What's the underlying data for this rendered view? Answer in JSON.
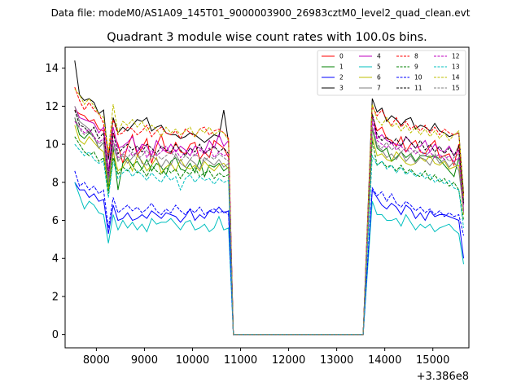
{
  "supertitle": "Data file: modeM0/AS1A09_145T01_9000003900_26983cztM0_level2_quad_clean.evt",
  "chart_data": {
    "type": "line",
    "title": "Quadrant 3 module wise count rates with 100.0s bins.",
    "xlabel": "",
    "ylabel": "",
    "x_offset_label": "+3.386e8",
    "xlim": [
      7350,
      15750
    ],
    "ylim": [
      -0.7,
      15.1
    ],
    "xticks": [
      8000,
      9000,
      10000,
      11000,
      12000,
      13000,
      14000,
      15000
    ],
    "yticks": [
      0,
      2,
      4,
      6,
      8,
      10,
      12,
      14
    ],
    "gaps": [
      [
        10600,
        13640
      ]
    ],
    "legend_position": "top-right",
    "legend_columns": 4,
    "series": [
      {
        "name": "0",
        "color": "#ff0000",
        "dashed": false,
        "seg1": [
          11.8,
          11.6,
          11.5,
          11.2,
          11.3,
          10.8,
          10.7,
          8.2,
          10.6,
          10.0,
          9.0,
          9.9,
          10.5,
          9.4,
          9.8,
          10.3,
          9.0,
          9.9,
          10.5,
          9.6,
          9.5,
          10.1,
          9.6,
          9.5,
          10.0,
          10.1,
          9.2,
          9.6,
          9.3,
          10.2,
          10.0,
          9.8,
          9.3
        ],
        "seg2": [
          11.5,
          10.7,
          10.9,
          10.3,
          10.2,
          9.9,
          10.4,
          9.6,
          10.0,
          10.2,
          9.6,
          9.5,
          9.9,
          10.2,
          9.3,
          9.4,
          9.5,
          8.9,
          10.0,
          7.3
        ]
      },
      {
        "name": "1",
        "color": "#008000",
        "dashed": false,
        "seg1": [
          11.4,
          10.5,
          10.3,
          10.6,
          10.4,
          9.8,
          10.1,
          7.7,
          9.8,
          7.6,
          9.0,
          9.3,
          8.9,
          9.1,
          8.7,
          9.2,
          8.6,
          9.0,
          8.8,
          8.4,
          9.1,
          9.3,
          8.7,
          8.6,
          9.0,
          8.5,
          9.2,
          8.3,
          8.9,
          8.8,
          9.0,
          8.6,
          8.8
        ],
        "seg2": [
          10.8,
          9.8,
          9.6,
          9.8,
          9.1,
          9.3,
          9.6,
          9.3,
          9.5,
          9.1,
          9.4,
          9.4,
          9.3,
          9.4,
          9.2,
          8.9,
          8.6,
          8.3,
          9.3,
          7.0
        ]
      },
      {
        "name": "2",
        "color": "#0000ff",
        "dashed": false,
        "seg1": [
          8.0,
          7.6,
          7.6,
          7.2,
          7.4,
          7.0,
          7.1,
          5.3,
          6.8,
          6.0,
          6.1,
          6.4,
          6.0,
          6.1,
          6.3,
          6.1,
          6.5,
          6.3,
          6.1,
          6.4,
          6.3,
          6.2,
          5.9,
          6.2,
          6.6,
          6.0,
          6.3,
          6.1,
          6.5,
          6.4,
          6.7,
          6.4,
          6.5
        ],
        "seg2": [
          7.6,
          7.2,
          6.8,
          6.6,
          6.9,
          6.7,
          6.3,
          6.8,
          6.6,
          6.1,
          6.4,
          6.0,
          6.5,
          6.2,
          6.3,
          6.3,
          6.2,
          6.1,
          6.0,
          4.0
        ]
      },
      {
        "name": "3",
        "color": "#000000",
        "dashed": false,
        "seg1": [
          14.4,
          12.6,
          12.3,
          12.4,
          12.2,
          11.6,
          11.8,
          9.2,
          11.4,
          10.6,
          10.9,
          10.7,
          11.0,
          11.3,
          11.2,
          11.4,
          10.7,
          10.9,
          11.0,
          10.6,
          10.5,
          10.5,
          10.3,
          10.4,
          10.6,
          10.5,
          10.3,
          10.1,
          10.3,
          10.5,
          10.4,
          11.8,
          10.1
        ],
        "seg2": [
          12.4,
          11.7,
          11.9,
          11.2,
          11.5,
          11.3,
          11.0,
          11.3,
          11.4,
          10.8,
          11.0,
          10.9,
          10.7,
          11.1,
          10.7,
          10.6,
          10.4,
          10.5,
          10.6,
          7.4
        ]
      },
      {
        "name": "4",
        "color": "#bf00bf",
        "dashed": false,
        "seg1": [
          12.0,
          11.4,
          11.3,
          11.2,
          11.1,
          10.6,
          10.9,
          8.6,
          10.9,
          9.8,
          9.9,
          10.1,
          10.4,
          9.6,
          10.0,
          9.9,
          9.4,
          10.2,
          9.8,
          9.6,
          10.0,
          9.6,
          9.9,
          9.7,
          9.4,
          9.9,
          9.8,
          9.6,
          10.2,
          9.8,
          10.5,
          9.9,
          10.2
        ],
        "seg2": [
          11.6,
          10.3,
          10.5,
          10.2,
          10.1,
          10.0,
          9.9,
          10.4,
          10.1,
          9.8,
          9.9,
          10.2,
          9.6,
          10.0,
          9.7,
          9.6,
          9.9,
          9.4,
          9.7,
          6.8
        ]
      },
      {
        "name": "5",
        "color": "#00bfbf",
        "dashed": false,
        "seg1": [
          8.0,
          7.3,
          6.6,
          7.0,
          6.8,
          6.4,
          6.3,
          4.8,
          6.3,
          5.5,
          6.0,
          5.6,
          5.9,
          5.5,
          5.8,
          5.4,
          6.1,
          5.8,
          5.9,
          5.9,
          6.1,
          5.8,
          5.5,
          5.9,
          6.0,
          5.5,
          5.6,
          5.8,
          5.4,
          5.6,
          6.2,
          5.5,
          5.6
        ],
        "seg2": [
          7.0,
          6.3,
          6.3,
          6.0,
          6.0,
          6.1,
          5.7,
          6.3,
          5.9,
          5.5,
          5.8,
          5.6,
          5.8,
          5.4,
          5.6,
          5.7,
          5.8,
          5.5,
          5.3,
          3.7
        ]
      },
      {
        "name": "6",
        "color": "#bfbf00",
        "dashed": false,
        "seg1": [
          11.0,
          10.2,
          10.0,
          10.4,
          10.1,
          9.8,
          9.6,
          7.5,
          9.6,
          8.6,
          8.8,
          9.2,
          8.6,
          9.4,
          9.1,
          8.6,
          8.9,
          9.3,
          8.5,
          8.8,
          9.0,
          8.6,
          9.2,
          8.8,
          8.7,
          8.9,
          8.6,
          9.1,
          8.8,
          8.6,
          8.9,
          9.0,
          8.7
        ],
        "seg2": [
          10.4,
          9.4,
          9.5,
          9.2,
          9.1,
          9.6,
          9.3,
          9.0,
          8.9,
          9.0,
          9.3,
          9.1,
          9.4,
          9.0,
          8.9,
          9.1,
          8.7,
          8.8,
          8.9,
          6.3
        ]
      },
      {
        "name": "7",
        "color": "#7f7f7f",
        "dashed": false,
        "seg1": [
          12.0,
          11.2,
          11.0,
          10.8,
          10.4,
          9.8,
          10.1,
          8.0,
          9.9,
          9.1,
          9.4,
          9.0,
          9.3,
          9.6,
          9.0,
          8.9,
          9.4,
          9.2,
          8.8,
          9.2,
          8.9,
          9.5,
          9.0,
          8.8,
          9.2,
          9.0,
          8.7,
          9.3,
          9.1,
          8.9,
          9.2,
          8.8,
          9.0
        ],
        "seg2": [
          10.9,
          9.9,
          9.7,
          9.3,
          9.5,
          9.2,
          9.6,
          9.1,
          9.4,
          9.0,
          9.3,
          9.2,
          8.9,
          9.4,
          9.0,
          9.2,
          8.8,
          9.1,
          8.6,
          6.6
        ]
      },
      {
        "name": "8",
        "color": "#ff0000",
        "dashed": true,
        "seg1": [
          13.0,
          12.3,
          11.8,
          12.2,
          11.8,
          11.6,
          11.1,
          9.4,
          11.3,
          10.5,
          10.6,
          10.9,
          10.8,
          10.5,
          10.7,
          11.0,
          10.4,
          10.7,
          10.9,
          10.6,
          10.5,
          10.7,
          10.3,
          10.8,
          10.6,
          10.4,
          10.8,
          10.9,
          10.5,
          10.7,
          10.8,
          10.6,
          10.3
        ],
        "seg2": [
          12.0,
          11.5,
          11.8,
          11.3,
          11.0,
          11.4,
          10.9,
          11.2,
          10.8,
          11.0,
          10.7,
          11.0,
          10.6,
          10.9,
          10.5,
          10.8,
          10.6,
          10.5,
          10.6,
          7.2
        ]
      },
      {
        "name": "9",
        "color": "#008000",
        "dashed": true,
        "seg1": [
          10.4,
          10.0,
          9.6,
          9.4,
          9.6,
          9.1,
          9.3,
          7.4,
          9.3,
          8.4,
          8.8,
          8.6,
          8.9,
          8.5,
          8.7,
          8.3,
          8.9,
          8.6,
          8.4,
          8.8,
          8.5,
          8.7,
          8.2,
          8.6,
          8.4,
          8.8,
          8.3,
          8.5,
          8.6,
          8.2,
          8.5,
          8.3,
          8.4
        ],
        "seg2": [
          10.2,
          8.9,
          9.1,
          8.8,
          8.9,
          8.6,
          8.9,
          8.5,
          8.7,
          8.4,
          8.3,
          8.6,
          8.1,
          8.4,
          8.0,
          8.2,
          7.8,
          8.0,
          7.6,
          6.0
        ]
      },
      {
        "name": "10",
        "color": "#0000ff",
        "dashed": true,
        "seg1": [
          8.6,
          7.8,
          8.0,
          7.6,
          7.8,
          7.4,
          7.6,
          5.6,
          7.2,
          6.4,
          6.6,
          6.8,
          6.5,
          6.7,
          6.4,
          6.6,
          6.9,
          6.5,
          6.3,
          6.6,
          6.4,
          6.8,
          6.5,
          6.3,
          6.6,
          6.4,
          6.7,
          6.3,
          6.5,
          6.6,
          6.4,
          6.5,
          6.3
        ],
        "seg2": [
          7.7,
          7.3,
          7.5,
          7.0,
          7.4,
          6.9,
          6.7,
          7.0,
          6.8,
          6.5,
          6.7,
          6.4,
          6.6,
          6.3,
          6.5,
          6.2,
          6.4,
          6.2,
          6.3,
          5.2
        ]
      },
      {
        "name": "11",
        "color": "#000000",
        "dashed": true,
        "seg1": [
          11.8,
          11.0,
          10.9,
          10.6,
          10.9,
          10.3,
          10.6,
          8.3,
          10.6,
          9.5,
          9.8,
          10.0,
          9.7,
          9.9,
          9.6,
          10.0,
          9.8,
          9.5,
          9.9,
          9.7,
          9.6,
          10.0,
          9.7,
          9.4,
          9.8,
          9.6,
          10.0,
          9.5,
          9.7,
          9.9,
          9.6,
          9.8,
          9.5
        ],
        "seg2": [
          11.6,
          10.5,
          10.2,
          10.4,
          10.0,
          10.3,
          9.9,
          10.4,
          10.1,
          9.8,
          10.2,
          9.7,
          10.0,
          9.6,
          9.9,
          9.5,
          9.8,
          9.4,
          9.9,
          6.9
        ]
      },
      {
        "name": "12",
        "color": "#bf00bf",
        "dashed": true,
        "seg1": [
          11.2,
          10.9,
          10.6,
          10.8,
          10.4,
          10.1,
          10.3,
          8.2,
          10.2,
          9.3,
          9.5,
          9.8,
          9.4,
          9.6,
          9.9,
          9.3,
          9.7,
          9.4,
          9.6,
          9.9,
          9.5,
          9.7,
          9.3,
          9.6,
          9.8,
          9.4,
          9.7,
          9.5,
          9.8,
          9.3,
          9.6,
          9.4,
          9.5
        ],
        "seg2": [
          11.2,
          10.2,
          10.0,
          9.8,
          10.1,
          9.7,
          9.9,
          9.6,
          9.8,
          9.5,
          9.7,
          9.4,
          9.6,
          9.3,
          9.5,
          9.2,
          9.4,
          9.1,
          9.3,
          6.5
        ]
      },
      {
        "name": "13",
        "color": "#00bfbf",
        "dashed": true,
        "seg1": [
          10.0,
          9.7,
          9.4,
          9.6,
          9.2,
          9.0,
          9.1,
          7.2,
          9.1,
          8.2,
          8.5,
          8.7,
          8.3,
          8.6,
          8.4,
          8.1,
          8.5,
          8.2,
          8.0,
          8.4,
          8.1,
          8.3,
          7.6,
          8.2,
          8.4,
          8.0,
          8.3,
          8.1,
          8.2,
          7.9,
          8.2,
          8.0,
          8.1
        ],
        "seg2": [
          9.4,
          8.9,
          9.1,
          8.7,
          8.9,
          8.5,
          8.8,
          8.4,
          8.6,
          8.3,
          8.5,
          8.2,
          8.4,
          8.0,
          8.2,
          7.9,
          8.1,
          7.7,
          7.6,
          5.6
        ]
      },
      {
        "name": "14",
        "color": "#bfbf00",
        "dashed": true,
        "seg1": [
          12.9,
          12.6,
          12.1,
          12.4,
          12.0,
          11.6,
          11.4,
          9.6,
          12.1,
          10.6,
          11.2,
          11.0,
          11.3,
          10.9,
          11.2,
          10.7,
          11.0,
          10.8,
          10.4,
          10.9,
          10.6,
          10.8,
          10.5,
          10.7,
          10.9,
          10.4,
          10.8,
          10.6,
          10.9,
          10.5,
          10.7,
          10.6,
          10.2
        ],
        "seg2": [
          12.1,
          11.3,
          11.0,
          11.4,
          10.9,
          11.1,
          10.7,
          11.0,
          10.6,
          10.9,
          10.5,
          10.8,
          10.4,
          10.7,
          10.3,
          10.6,
          10.2,
          10.5,
          10.7,
          7.2
        ]
      },
      {
        "name": "15",
        "color": "#7f7f7f",
        "dashed": true,
        "seg1": [
          11.4,
          10.8,
          10.5,
          10.7,
          10.3,
          10.0,
          10.2,
          8.1,
          10.1,
          9.2,
          9.5,
          9.3,
          9.6,
          9.2,
          9.4,
          9.7,
          9.3,
          9.5,
          9.2,
          9.4,
          9.6,
          9.3,
          9.1,
          9.4,
          9.2,
          9.5,
          9.3,
          9.1,
          9.4,
          9.2,
          9.5,
          9.3,
          9.1
        ],
        "seg2": [
          10.9,
          10.0,
          9.8,
          10.1,
          9.7,
          9.9,
          9.6,
          9.8,
          9.5,
          9.7,
          9.4,
          9.6,
          9.3,
          9.5,
          9.2,
          9.4,
          9.1,
          9.3,
          9.5,
          6.4
        ]
      }
    ]
  }
}
